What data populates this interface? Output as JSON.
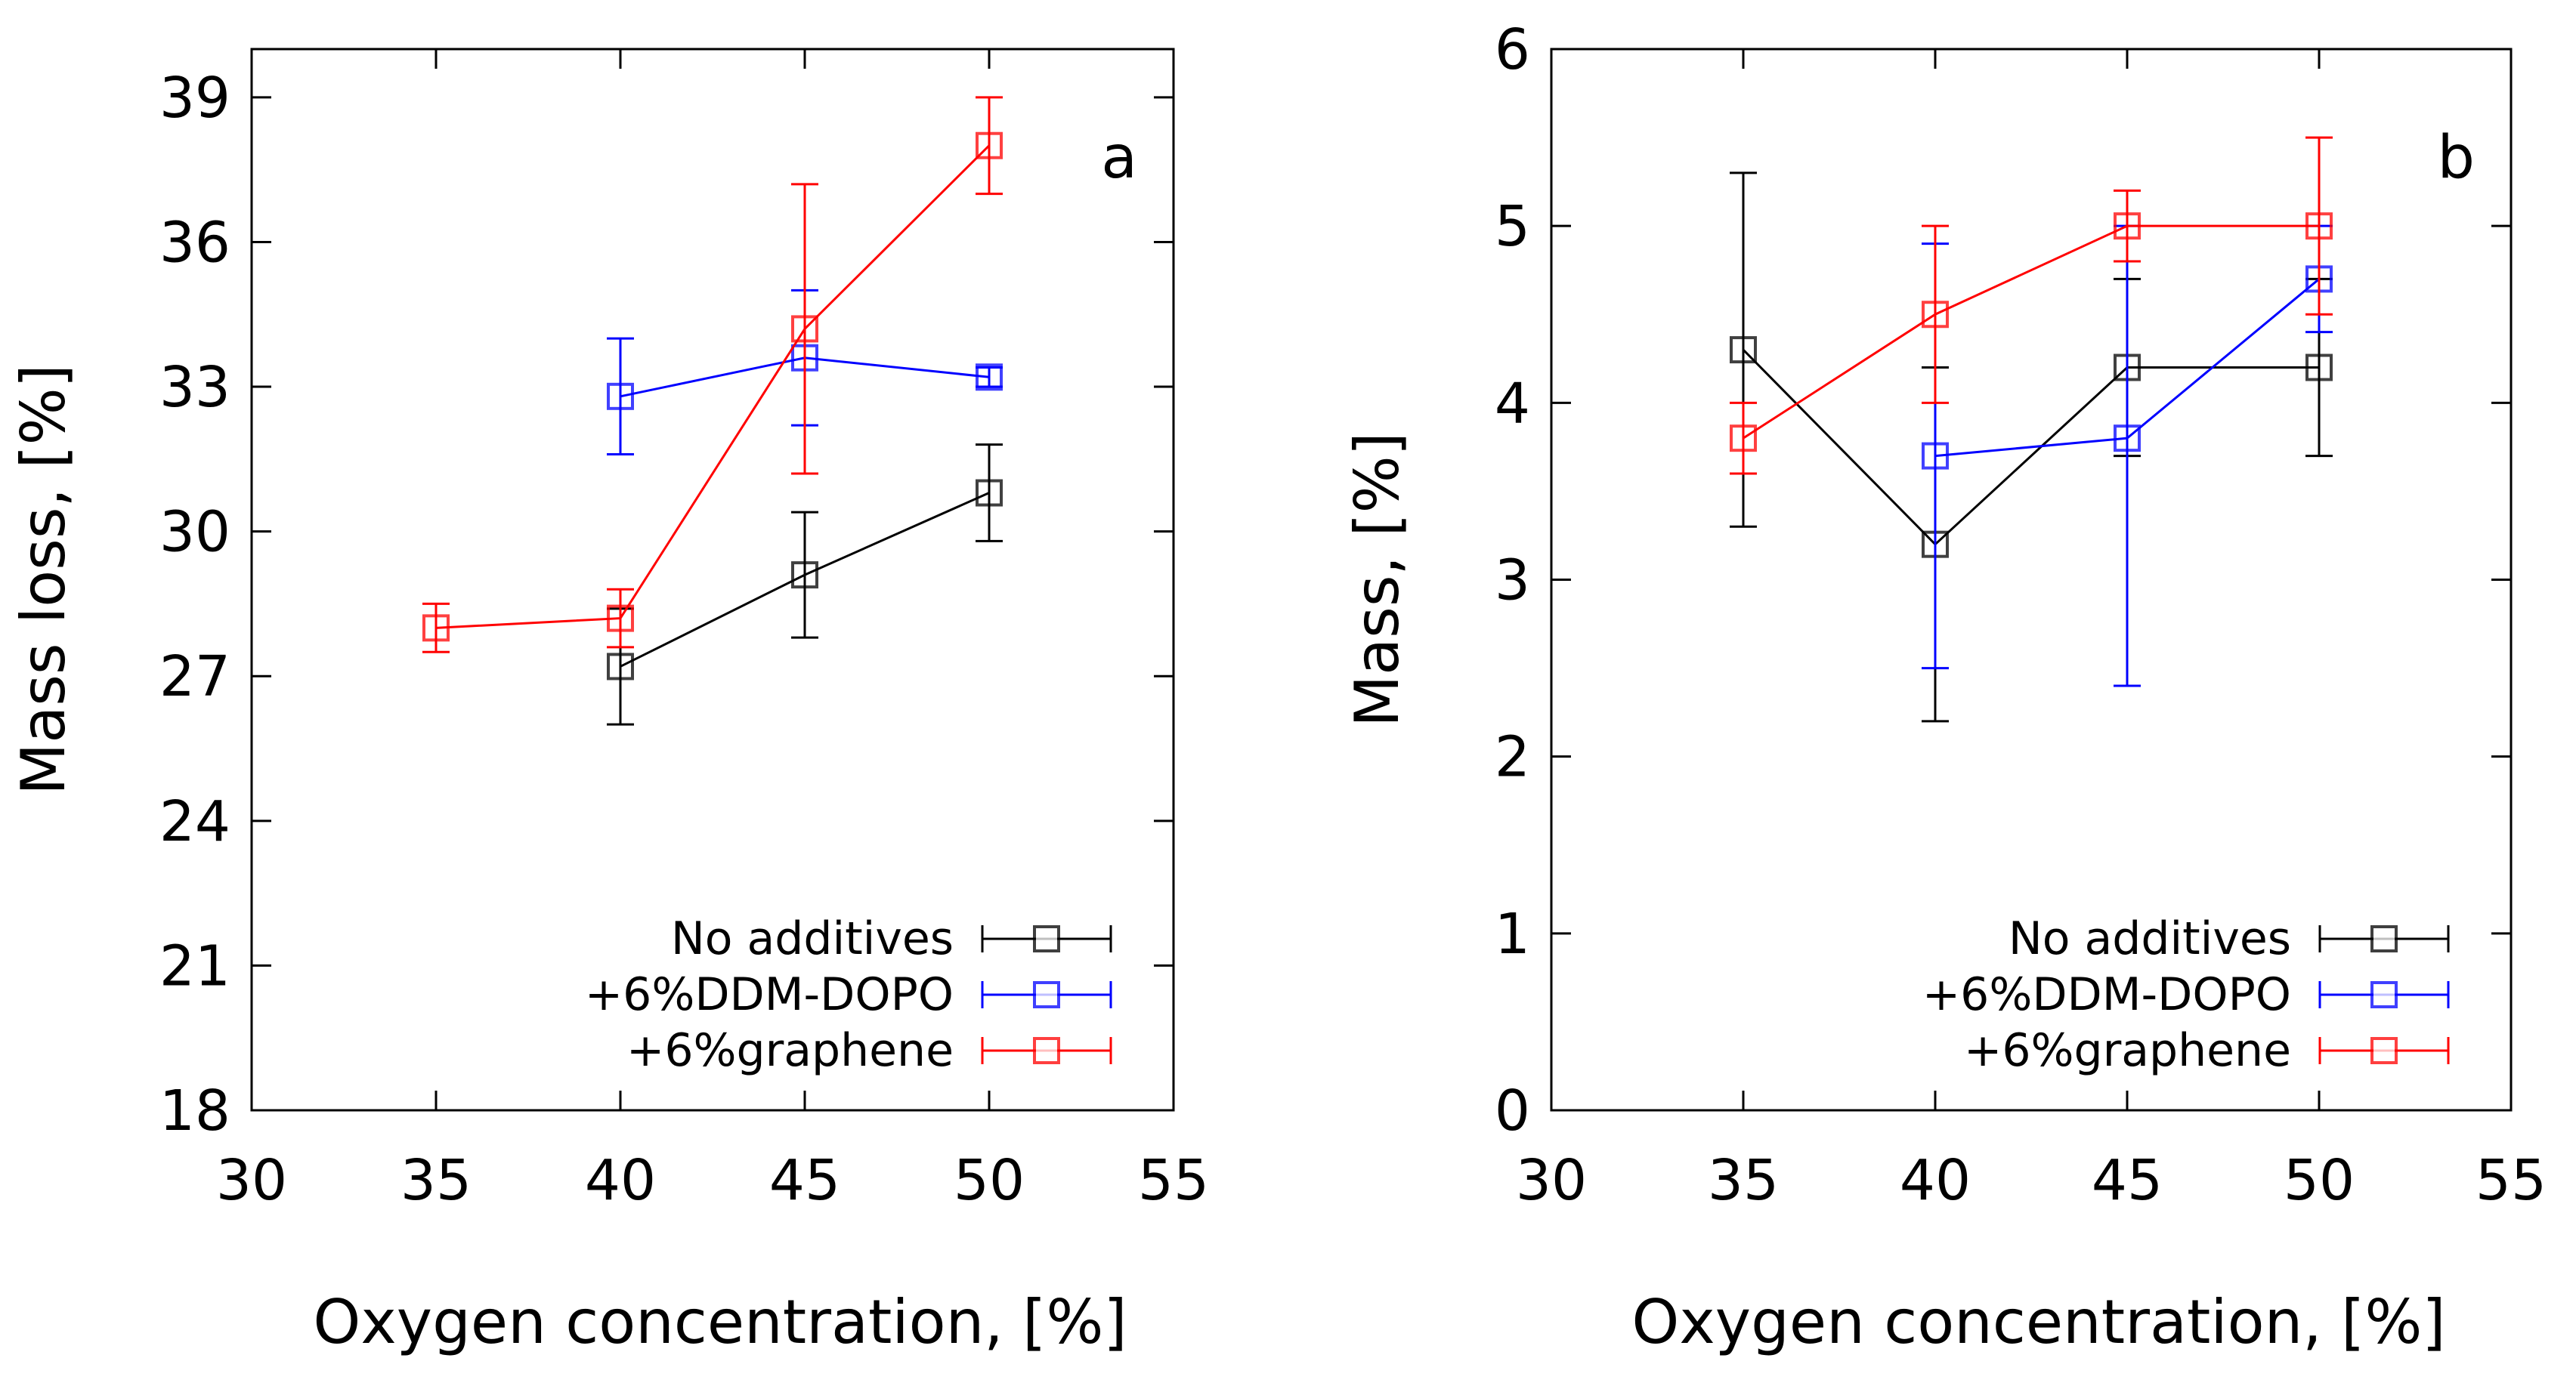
{
  "chart_data": [
    {
      "type": "line",
      "panel_label": "a",
      "xlabel": "Oxygen concentration, [%]",
      "ylabel": "Mass loss, [%]",
      "xlim": [
        30,
        55
      ],
      "ylim": [
        18,
        40
      ],
      "xticks": [
        30,
        35,
        40,
        45,
        50,
        55
      ],
      "yticks": [
        18,
        21,
        24,
        27,
        30,
        33,
        36,
        39
      ],
      "legend_position": "bottom-right",
      "series": [
        {
          "name": "No additives",
          "color": "#000000",
          "x": [
            40,
            45,
            50
          ],
          "y": [
            27.2,
            29.1,
            30.8
          ],
          "yerr_low": [
            26.0,
            27.8,
            29.8
          ],
          "yerr_high": [
            28.4,
            30.4,
            31.8
          ]
        },
        {
          "name": "+6%DDM-DOPO",
          "color": "#0000ff",
          "x": [
            40,
            45,
            50
          ],
          "y": [
            32.8,
            33.6,
            33.2
          ],
          "yerr_low": [
            31.6,
            32.2,
            33.0
          ],
          "yerr_high": [
            34.0,
            35.0,
            33.4
          ]
        },
        {
          "name": "+6%graphene",
          "color": "#ff0000",
          "x": [
            35,
            40,
            45,
            50
          ],
          "y": [
            28.0,
            28.2,
            34.2,
            38.0
          ],
          "yerr_low": [
            27.5,
            27.6,
            31.2,
            37.0
          ],
          "yerr_high": [
            28.5,
            28.8,
            37.2,
            39.0
          ]
        }
      ]
    },
    {
      "type": "line",
      "panel_label": "b",
      "xlabel": "Oxygen concentration, [%]",
      "ylabel": "Mass, [%]",
      "xlim": [
        30,
        55
      ],
      "ylim": [
        0,
        6
      ],
      "xticks": [
        30,
        35,
        40,
        45,
        50,
        55
      ],
      "yticks": [
        0,
        1,
        2,
        3,
        4,
        5,
        6
      ],
      "legend_position": "bottom-right",
      "series": [
        {
          "name": "No additives",
          "color": "#000000",
          "x": [
            35,
            40,
            45,
            50
          ],
          "y": [
            4.3,
            3.2,
            4.2,
            4.2
          ],
          "yerr_low": [
            3.3,
            2.2,
            3.7,
            3.7
          ],
          "yerr_high": [
            5.3,
            4.2,
            4.7,
            4.7
          ]
        },
        {
          "name": "+6%DDM-DOPO",
          "color": "#0000ff",
          "x": [
            40,
            45,
            50
          ],
          "y": [
            3.7,
            3.8,
            4.7
          ],
          "yerr_low": [
            2.5,
            2.4,
            4.4
          ],
          "yerr_high": [
            4.9,
            5.0,
            5.0
          ]
        },
        {
          "name": "+6%graphene",
          "color": "#ff0000",
          "x": [
            35,
            40,
            45,
            50
          ],
          "y": [
            3.8,
            4.5,
            5.0,
            5.0
          ],
          "yerr_low": [
            3.6,
            4.0,
            4.8,
            4.5
          ],
          "yerr_high": [
            4.0,
            5.0,
            5.2,
            5.5
          ]
        }
      ]
    }
  ]
}
